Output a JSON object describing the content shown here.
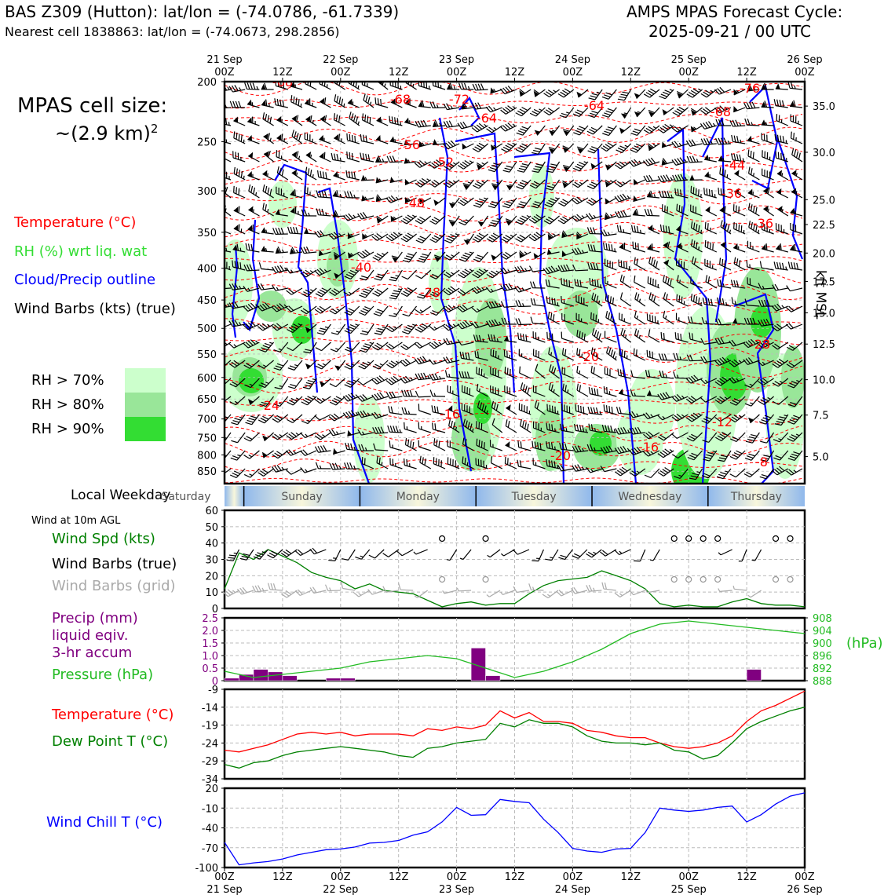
{
  "header": {
    "station": "BAS Z309 (Hutton): lat/lon = (-74.0786, -61.7339)",
    "nearest_cell": "Nearest cell 1838863: lat/lon = (-74.0673, 298.2856)",
    "cycle_label": "AMPS MPAS Forecast Cycle:",
    "cycle_time": "2025-09-21 / 00 UTC"
  },
  "cell_size": {
    "label": "MPAS cell size:",
    "value": "~(2.9 km)",
    "exponent": "2"
  },
  "legend": {
    "temperature": "Temperature (°C)",
    "rh": "RH (%) wrt liq. wat",
    "cloud": "Cloud/Precip outline",
    "wind": "Wind Barbs (kts) (true)",
    "rh70": "RH > 70%",
    "rh80": "RH > 80%",
    "rh90": "RH > 90%"
  },
  "colors": {
    "temp": "#ff0000",
    "rh70": "#ccffcc",
    "rh80": "#99e699",
    "rh90": "#33dd33",
    "cloud": "#0000ff",
    "pressure": "#22bb22",
    "precip": "#800080",
    "dewpoint": "#008000",
    "windchill": "#0000ff"
  },
  "time_axis": {
    "top_dates": [
      "21 Sep",
      "22 Sep",
      "23 Sep",
      "24 Sep",
      "25 Sep",
      "26 Sep"
    ],
    "ticks": [
      "00Z",
      "12Z",
      "00Z",
      "12Z",
      "00Z",
      "12Z",
      "00Z",
      "12Z",
      "00Z",
      "12Z",
      "00Z"
    ],
    "bottom_dates": [
      "21 Sep",
      "22 Sep",
      "23 Sep",
      "24 Sep",
      "25 Sep",
      "26 Sep"
    ]
  },
  "cross_section": {
    "pressure_levels": [
      "200",
      "250",
      "300",
      "350",
      "400",
      "450",
      "500",
      "550",
      "600",
      "650",
      "700",
      "750",
      "800",
      "850"
    ],
    "height_labels": [
      "35.0",
      "30.0",
      "25.0",
      "22.5",
      "20.0",
      "17.5",
      "15.0",
      "12.5",
      "10.0",
      "7.5",
      "5.0"
    ],
    "height_axis_label": "kft MSL",
    "temp_labels": [
      "-68",
      "-68",
      "-72",
      "-64",
      "-76",
      "-68",
      "-64",
      "-56",
      "-52",
      "-44",
      "-48",
      "-36",
      "-40",
      "-36",
      "-28",
      "-24",
      "-20",
      "-16",
      "-20",
      "-16",
      "-12",
      "-8",
      "-28"
    ]
  },
  "weekday": {
    "label": "Local Weekday",
    "days": [
      "Saturday",
      "Sunday",
      "Monday",
      "Tuesday",
      "Wednesday",
      "Thursday"
    ]
  },
  "wind_panel": {
    "title": "Wind at 10m AGL",
    "legend_speed": "Wind Spd (kts)",
    "legend_true": "Wind Barbs (true)",
    "legend_grid": "Wind Barbs (grid)",
    "yticks": [
      "0",
      "10",
      "20",
      "30",
      "40",
      "50",
      "60"
    ]
  },
  "precip_panel": {
    "legend_precip1": "Precip (mm)",
    "legend_precip2": "liquid eqiv.",
    "legend_precip3": "3-hr accum",
    "legend_pressure": "Pressure (hPa)",
    "yticks_left": [
      "0",
      "0.5",
      "1.0",
      "1.5",
      "2.0",
      "2.5"
    ],
    "yticks_right": [
      "888",
      "892",
      "896",
      "900",
      "904",
      "908"
    ],
    "right_unit": "(hPa)"
  },
  "temp_panel": {
    "legend_temp": "Temperature (°C)",
    "legend_dew": "Dew Point T (°C)",
    "yticks": [
      "-34",
      "-29",
      "-24",
      "-19",
      "-14",
      "-9"
    ]
  },
  "chill_panel": {
    "legend": "Wind Chill T (°C)",
    "yticks": [
      "-100",
      "-70",
      "-40",
      "-10",
      "20"
    ]
  },
  "chart_data": [
    {
      "type": "line",
      "title": "Wind at 10m AGL",
      "ylabel": "Wind Spd (kts)",
      "ylim": [
        0,
        60
      ],
      "x_hours": [
        0,
        3,
        6,
        9,
        12,
        15,
        18,
        21,
        24,
        27,
        30,
        33,
        36,
        39,
        42,
        45,
        48,
        51,
        54,
        57,
        60,
        63,
        66,
        69,
        72,
        75,
        78,
        81,
        84,
        87,
        90,
        93,
        96,
        99,
        102,
        105,
        108,
        111,
        114,
        117,
        120
      ],
      "series": [
        {
          "name": "Wind Spd (kts)",
          "values": [
            12,
            34,
            30,
            36,
            32,
            28,
            22,
            19,
            17,
            12,
            15,
            11,
            10,
            9,
            5,
            1,
            3,
            4,
            2,
            3,
            3,
            9,
            14,
            17,
            18,
            19,
            23,
            20,
            17,
            12,
            3,
            1,
            2,
            1,
            1,
            4,
            6,
            3,
            2,
            2,
            1
          ]
        }
      ]
    },
    {
      "type": "bar",
      "title": "Precip (mm) liquid eqiv. 3-hr accum",
      "ylim": [
        0,
        2.5
      ],
      "x_hours_start": [
        0,
        3,
        6,
        9,
        12,
        21,
        24,
        51,
        54,
        108
      ],
      "values": [
        0.1,
        0.25,
        0.45,
        0.35,
        0.2,
        0.1,
        0.1,
        1.3,
        0.2,
        0.45
      ]
    },
    {
      "type": "line",
      "title": "Pressure (hPa)",
      "ylim": [
        888,
        908
      ],
      "x_hours": [
        0,
        6,
        12,
        18,
        24,
        30,
        36,
        42,
        48,
        54,
        60,
        66,
        72,
        78,
        84,
        90,
        96,
        102,
        108,
        114,
        120
      ],
      "series": [
        {
          "name": "Pressure",
          "values": [
            891,
            889,
            890,
            891,
            892,
            894,
            895,
            896,
            895,
            892,
            889,
            891,
            894,
            898,
            903,
            906,
            907,
            906,
            905,
            904,
            903
          ]
        }
      ]
    },
    {
      "type": "line",
      "title": "Temperature / Dew Point",
      "ylim": [
        -34,
        -9
      ],
      "x_hours": [
        0,
        3,
        6,
        9,
        12,
        15,
        18,
        21,
        24,
        27,
        30,
        33,
        36,
        39,
        42,
        45,
        48,
        51,
        54,
        57,
        60,
        63,
        66,
        69,
        72,
        75,
        78,
        81,
        84,
        87,
        90,
        93,
        96,
        99,
        102,
        105,
        108,
        111,
        114,
        117,
        120
      ],
      "series": [
        {
          "name": "Temperature (°C)",
          "values": [
            -26,
            -26.5,
            -25.5,
            -24.5,
            -23,
            -21.5,
            -21,
            -21.5,
            -21,
            -22,
            -21.5,
            -21.5,
            -21.5,
            -22,
            -20,
            -20.5,
            -19.5,
            -20,
            -19,
            -15,
            -17,
            -15.5,
            -18,
            -18,
            -18.5,
            -20.5,
            -21,
            -22,
            -22.5,
            -22.5,
            -24,
            -25,
            -25.5,
            -25,
            -24,
            -22,
            -18,
            -15,
            -13.5,
            -11.5,
            -9.5
          ]
        },
        {
          "name": "Dew Point T (°C)",
          "values": [
            -30,
            -31,
            -29.5,
            -29,
            -27.5,
            -26.5,
            -26,
            -25.5,
            -25,
            -25.5,
            -26,
            -26.5,
            -27.5,
            -28,
            -25.5,
            -25,
            -24,
            -23.5,
            -23,
            -18.5,
            -19.5,
            -17.5,
            -18.5,
            -18.5,
            -19.5,
            -22,
            -23.5,
            -24,
            -24,
            -24.5,
            -24,
            -26,
            -26.5,
            -28.5,
            -27.5,
            -24,
            -20,
            -18,
            -16.5,
            -15,
            -14
          ]
        }
      ]
    },
    {
      "type": "line",
      "title": "Wind Chill T (°C)",
      "ylim": [
        -100,
        20
      ],
      "x_hours": [
        0,
        3,
        6,
        9,
        12,
        15,
        18,
        21,
        24,
        27,
        30,
        33,
        36,
        39,
        42,
        45,
        48,
        51,
        54,
        57,
        60,
        63,
        66,
        69,
        72,
        75,
        78,
        81,
        84,
        87,
        90,
        93,
        96,
        99,
        102,
        105,
        108,
        111,
        114,
        117,
        120
      ],
      "series": [
        {
          "name": "Wind Chill T (°C)",
          "values": [
            -62,
            -96,
            -93,
            -91,
            -87,
            -81,
            -77,
            -73,
            -72,
            -69,
            -63,
            -62,
            -59,
            -51,
            -46,
            -31,
            -9,
            -21,
            -20,
            3,
            0,
            -2,
            -27,
            -47,
            -71,
            -75,
            -77,
            -72,
            -71,
            -47,
            -10,
            -13,
            -15,
            -13,
            -9,
            -7,
            -31,
            -20,
            -4,
            8,
            13
          ]
        }
      ]
    }
  ]
}
